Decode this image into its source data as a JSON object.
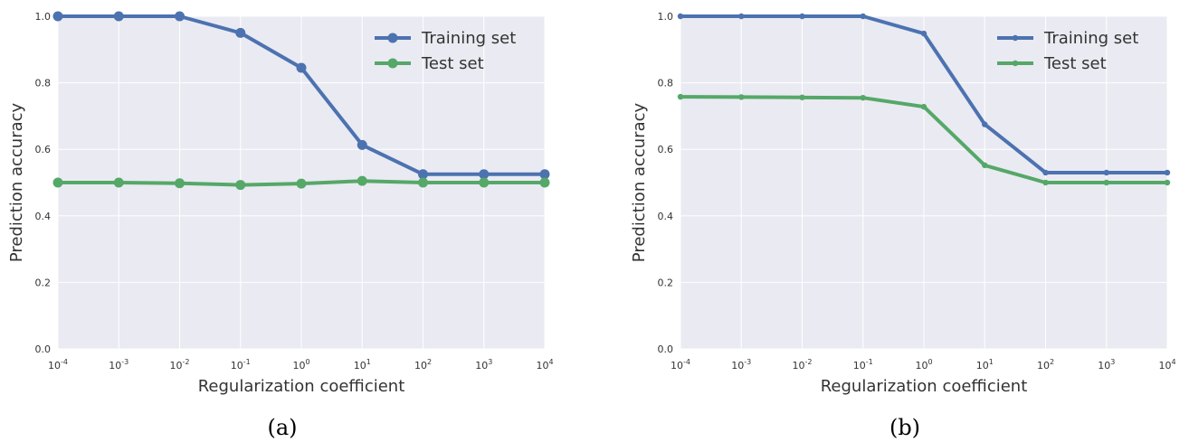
{
  "colors": {
    "plot_background": "#eaeaf2",
    "grid": "#ffffff",
    "training": "#4c72b0",
    "test": "#55a868"
  },
  "chart_data": [
    {
      "type": "line",
      "caption": "(a)",
      "xlabel": "Regularization coefficient",
      "ylabel": "Prediction accuracy",
      "x_scale": "log",
      "x_ticks": [
        {
          "base": "10",
          "exp": "-4"
        },
        {
          "base": "10",
          "exp": "-3"
        },
        {
          "base": "10",
          "exp": "-2"
        },
        {
          "base": "10",
          "exp": "-1"
        },
        {
          "base": "10",
          "exp": "0"
        },
        {
          "base": "10",
          "exp": "1"
        },
        {
          "base": "10",
          "exp": "2"
        },
        {
          "base": "10",
          "exp": "3"
        },
        {
          "base": "10",
          "exp": "4"
        }
      ],
      "y_ticks": [
        "0.0",
        "0.2",
        "0.4",
        "0.6",
        "0.8",
        "1.0"
      ],
      "x": [
        0.0001,
        0.001,
        0.01,
        0.1,
        1,
        10,
        100,
        1000,
        10000
      ],
      "xlim": [
        0.0001,
        10000
      ],
      "ylim": [
        0.0,
        1.0
      ],
      "grid": true,
      "legend_position": "top-right",
      "series": [
        {
          "name": "Training set",
          "color": "#4c72b0",
          "marker": "large",
          "values": [
            1.0,
            1.0,
            1.0,
            0.95,
            0.845,
            0.613,
            0.525,
            0.525,
            0.525
          ]
        },
        {
          "name": "Test set",
          "color": "#55a868",
          "marker": "large",
          "values": [
            0.5,
            0.5,
            0.498,
            0.493,
            0.497,
            0.505,
            0.5,
            0.5,
            0.5
          ]
        }
      ]
    },
    {
      "type": "line",
      "caption": "(b)",
      "xlabel": "Regularization coefficient",
      "ylabel": "Prediction accuracy",
      "x_scale": "log",
      "x_ticks": [
        {
          "base": "10",
          "exp": "-4"
        },
        {
          "base": "10",
          "exp": "-3"
        },
        {
          "base": "10",
          "exp": "-2"
        },
        {
          "base": "10",
          "exp": "-1"
        },
        {
          "base": "10",
          "exp": "0"
        },
        {
          "base": "10",
          "exp": "1"
        },
        {
          "base": "10",
          "exp": "2"
        },
        {
          "base": "10",
          "exp": "3"
        },
        {
          "base": "10",
          "exp": "4"
        }
      ],
      "y_ticks": [
        "0.0",
        "0.2",
        "0.4",
        "0.6",
        "0.8",
        "1.0"
      ],
      "x": [
        0.0001,
        0.001,
        0.01,
        0.1,
        1,
        10,
        100,
        1000,
        10000
      ],
      "xlim": [
        0.0001,
        10000
      ],
      "ylim": [
        0.0,
        1.0
      ],
      "grid": true,
      "legend_position": "top-right",
      "series": [
        {
          "name": "Training set",
          "color": "#4c72b0",
          "marker": "small",
          "values": [
            1.0,
            1.0,
            1.0,
            1.0,
            0.948,
            0.675,
            0.53,
            0.53,
            0.53
          ]
        },
        {
          "name": "Test set",
          "color": "#55a868",
          "marker": "small",
          "values": [
            0.758,
            0.757,
            0.756,
            0.755,
            0.728,
            0.552,
            0.5,
            0.5,
            0.5
          ]
        }
      ]
    }
  ]
}
